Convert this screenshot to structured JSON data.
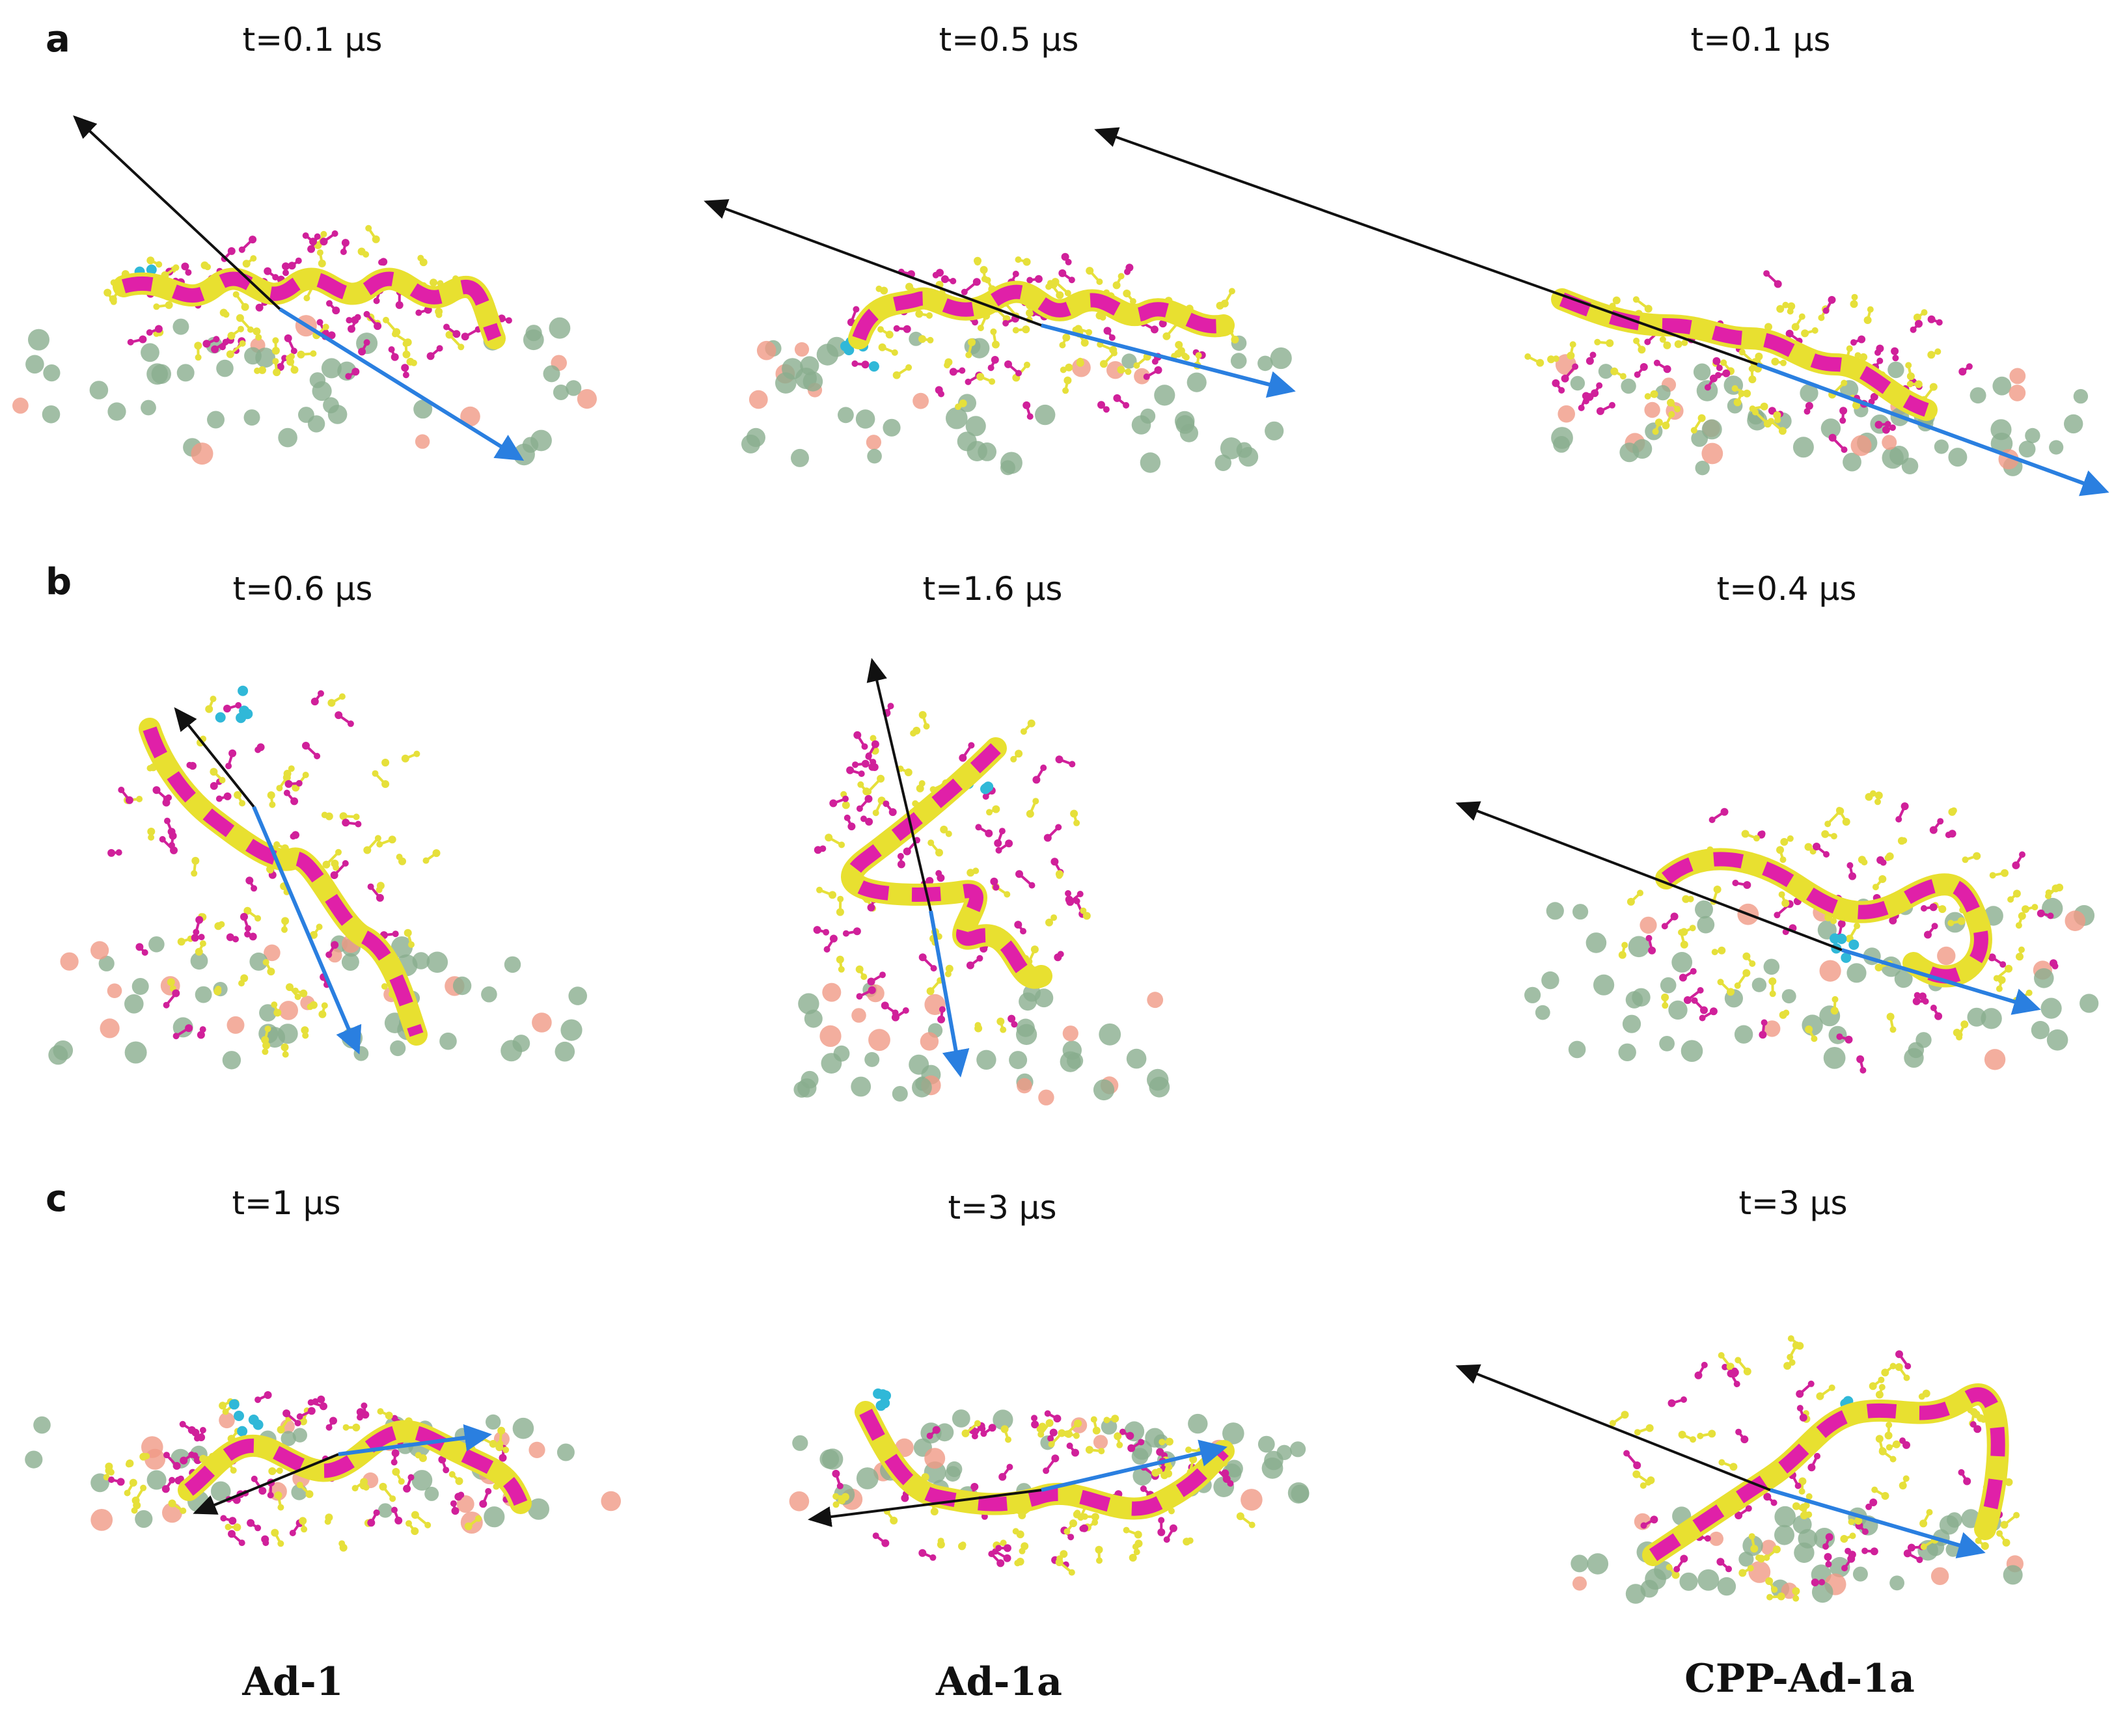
{
  "panels": [
    {
      "letter": "a",
      "times": [
        "t=0.1 μs",
        "t=0.5 μs",
        "t=0.1 μs"
      ]
    },
    {
      "letter": "b",
      "times": [
        "t=0.6 μs",
        "t=1.6 μs",
        "t=0.4 μs"
      ]
    },
    {
      "letter": "c",
      "times": [
        "t=1 μs",
        "t=3 μs",
        "t=3 μs"
      ]
    }
  ],
  "peptides": [
    "Ad-1",
    "Ad-1a",
    "CPP-Ad-1a"
  ],
  "colors": {
    "helix_magenta": "#e020a8",
    "helix_yellow": "#e8e030",
    "sidechain_yellow": "#e6e03a",
    "sidechain_magenta": "#d0209a",
    "terminus_cyan": "#30b8d8",
    "lipid_green": "#8aae8e",
    "lipid_salmon": "#f09a86",
    "axis_black": "#111111",
    "axis_blue": "#2a7fe0"
  }
}
